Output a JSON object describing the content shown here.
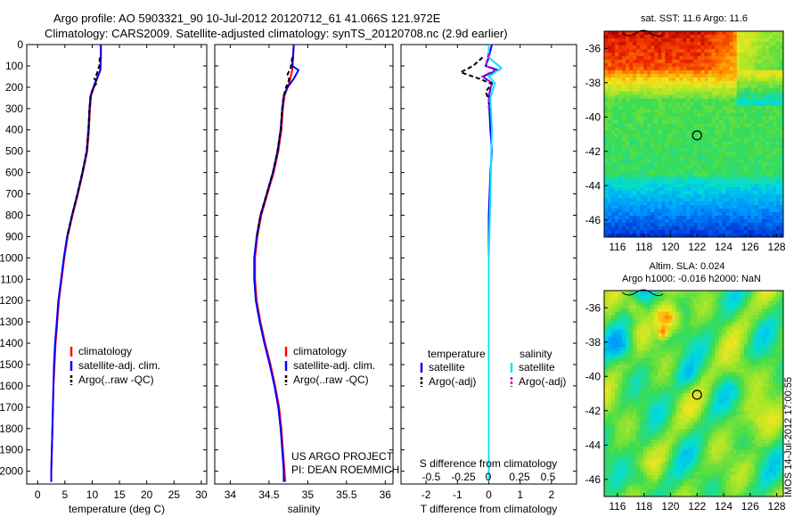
{
  "header": {
    "line1": "Argo profile: AO 5903321_90 10-Jul-2012 20120712_61 41.066S 121.972E",
    "line2": "Climatology: CARS2009. Satellite-adjusted climatology: synTS_20120708.nc (2.9d earlier)"
  },
  "colors": {
    "climatology": "#ff0000",
    "satellite": "#0000ff",
    "argo": "#000000",
    "sat_salinity": "#00e5ff",
    "argo_salinity": "#cc00cc"
  },
  "chart_data": [
    {
      "type": "line",
      "xlabel": "temperature (deg C)",
      "ylabel": "",
      "xlim": [
        -2,
        31
      ],
      "ylim": [
        2060,
        0
      ],
      "xticks": [
        "0",
        "5",
        "10",
        "15",
        "20",
        "25",
        "30"
      ],
      "yticks": [
        "0",
        "100",
        "200",
        "300",
        "400",
        "500",
        "600",
        "700",
        "800",
        "900",
        "1000",
        "1100",
        "1200",
        "1300",
        "1400",
        "1500",
        "1600",
        "1700",
        "1800",
        "1900",
        "2000"
      ],
      "legend": [
        "climatology",
        "satellite-adj. clim.",
        "Argo(..raw -QC)"
      ],
      "series": [
        {
          "name": "climatology",
          "color": "#ff0000",
          "points": [
            [
              11.6,
              0
            ],
            [
              11.6,
              60
            ],
            [
              11.5,
              120
            ],
            [
              10.6,
              180
            ],
            [
              9.8,
              240
            ],
            [
              9.6,
              300
            ],
            [
              9.4,
              400
            ],
            [
              9.1,
              500
            ],
            [
              8.3,
              600
            ],
            [
              7.4,
              700
            ],
            [
              6.4,
              800
            ],
            [
              5.5,
              900
            ],
            [
              4.9,
              1000
            ],
            [
              4.4,
              1100
            ],
            [
              3.9,
              1200
            ],
            [
              3.6,
              1300
            ],
            [
              3.3,
              1400
            ],
            [
              3.1,
              1500
            ],
            [
              2.9,
              1600
            ],
            [
              2.8,
              1700
            ],
            [
              2.7,
              1800
            ],
            [
              2.6,
              1900
            ],
            [
              2.5,
              2000
            ],
            [
              2.5,
              2050
            ]
          ]
        },
        {
          "name": "satellite-adj. clim.",
          "color": "#0000ff",
          "points": [
            [
              11.6,
              0
            ],
            [
              11.6,
              60
            ],
            [
              11.5,
              120
            ],
            [
              10.5,
              180
            ],
            [
              9.7,
              240
            ],
            [
              9.5,
              300
            ],
            [
              9.3,
              400
            ],
            [
              9.0,
              500
            ],
            [
              8.2,
              600
            ],
            [
              7.3,
              700
            ],
            [
              6.3,
              800
            ],
            [
              5.4,
              900
            ],
            [
              4.8,
              1000
            ],
            [
              4.3,
              1100
            ],
            [
              3.8,
              1200
            ],
            [
              3.5,
              1300
            ],
            [
              3.2,
              1400
            ],
            [
              3.0,
              1500
            ],
            [
              2.9,
              1600
            ],
            [
              2.8,
              1700
            ],
            [
              2.7,
              1800
            ],
            [
              2.6,
              1900
            ],
            [
              2.5,
              2000
            ],
            [
              2.5,
              2050
            ]
          ]
        },
        {
          "name": "Argo(..raw -QC)",
          "color": "#000000",
          "dashed": true,
          "points": [
            [
              11.4,
              60
            ],
            [
              11.3,
              100
            ],
            [
              10.8,
              140
            ],
            [
              10.4,
              160
            ],
            [
              11.0,
              175
            ],
            [
              10.2,
              200
            ],
            [
              9.7,
              240
            ],
            [
              9.5,
              300
            ],
            [
              9.3,
              400
            ],
            [
              9.0,
              500
            ],
            [
              8.2,
              600
            ],
            [
              7.3,
              700
            ],
            [
              6.3,
              800
            ],
            [
              5.4,
              900
            ]
          ]
        }
      ]
    },
    {
      "type": "line",
      "xlabel": "salinity",
      "xlim": [
        33.8,
        36.1
      ],
      "ylim": [
        2060,
        0
      ],
      "xticks": [
        "34",
        "34.5",
        "35",
        "35.5",
        "36"
      ],
      "legend": [
        "climatology",
        "satellite-adj. clim.",
        "Argo(..raw -QC)"
      ],
      "annotation": [
        "US ARGO PROJECT",
        "PI: DEAN ROEMMICH"
      ],
      "series": [
        {
          "name": "climatology",
          "color": "#ff0000",
          "points": [
            [
              34.82,
              0
            ],
            [
              34.81,
              60
            ],
            [
              34.8,
              120
            ],
            [
              34.76,
              180
            ],
            [
              34.7,
              240
            ],
            [
              34.68,
              300
            ],
            [
              34.66,
              400
            ],
            [
              34.62,
              500
            ],
            [
              34.56,
              600
            ],
            [
              34.48,
              700
            ],
            [
              34.4,
              800
            ],
            [
              34.35,
              900
            ],
            [
              34.32,
              1000
            ],
            [
              34.32,
              1100
            ],
            [
              34.34,
              1200
            ],
            [
              34.39,
              1300
            ],
            [
              34.45,
              1400
            ],
            [
              34.52,
              1500
            ],
            [
              34.58,
              1600
            ],
            [
              34.63,
              1700
            ],
            [
              34.66,
              1800
            ],
            [
              34.68,
              1900
            ],
            [
              34.7,
              2000
            ],
            [
              34.71,
              2050
            ]
          ]
        },
        {
          "name": "satellite-adj. clim.",
          "color": "#0000ff",
          "points": [
            [
              34.82,
              0
            ],
            [
              34.81,
              60
            ],
            [
              34.8,
              100
            ],
            [
              34.88,
              120
            ],
            [
              34.82,
              160
            ],
            [
              34.74,
              200
            ],
            [
              34.69,
              240
            ],
            [
              34.67,
              300
            ],
            [
              34.65,
              400
            ],
            [
              34.61,
              500
            ],
            [
              34.55,
              600
            ],
            [
              34.47,
              700
            ],
            [
              34.39,
              800
            ],
            [
              34.34,
              900
            ],
            [
              34.31,
              1000
            ],
            [
              34.31,
              1100
            ],
            [
              34.33,
              1200
            ],
            [
              34.38,
              1300
            ],
            [
              34.44,
              1400
            ],
            [
              34.51,
              1500
            ],
            [
              34.57,
              1600
            ],
            [
              34.62,
              1700
            ],
            [
              34.65,
              1800
            ],
            [
              34.67,
              1900
            ],
            [
              34.69,
              2000
            ],
            [
              34.69,
              2050
            ]
          ]
        },
        {
          "name": "Argo(..raw -QC)",
          "color": "#000000",
          "dashed": true,
          "points": [
            [
              34.8,
              60
            ],
            [
              34.78,
              110
            ],
            [
              34.74,
              140
            ],
            [
              34.76,
              165
            ],
            [
              34.72,
              200
            ],
            [
              34.69,
              240
            ],
            [
              34.67,
              300
            ],
            [
              34.65,
              400
            ],
            [
              34.61,
              500
            ],
            [
              34.55,
              600
            ],
            [
              34.47,
              700
            ],
            [
              34.39,
              800
            ],
            [
              34.34,
              900
            ]
          ]
        }
      ]
    },
    {
      "type": "line",
      "xlabel": "T difference from climatology",
      "top_label": "S difference from climatology",
      "xlim": [
        -2.8,
        2.8
      ],
      "ylim": [
        2060,
        0
      ],
      "xticks": [
        "-2",
        "-1",
        "0",
        "1",
        "2"
      ],
      "top_ticks": [
        "-0.5",
        "-0.25",
        "0",
        "0.25",
        "0.5"
      ],
      "legend_left": {
        "title": "temperature",
        "items": [
          "satellite",
          "Argo(-adj)"
        ]
      },
      "legend_right": {
        "title": "salinity",
        "items": [
          "satellite",
          "Argo(-adj)"
        ]
      },
      "series": [
        {
          "name": "satellite",
          "group": "temperature",
          "color": "#0000ff",
          "points": [
            [
              0.1,
              0
            ],
            [
              0.0,
              60
            ],
            [
              -0.1,
              100
            ],
            [
              0.3,
              120
            ],
            [
              -0.2,
              150
            ],
            [
              0.1,
              180
            ],
            [
              0.0,
              240
            ],
            [
              0.05,
              400
            ],
            [
              0.1,
              500
            ],
            [
              0.05,
              600
            ],
            [
              0.0,
              800
            ],
            [
              0.0,
              1000
            ],
            [
              0.0,
              1200
            ],
            [
              0.0,
              1400
            ],
            [
              0.0,
              2050
            ]
          ]
        },
        {
          "name": "Argo(-adj)",
          "group": "temperature",
          "color": "#000000",
          "dashed": true,
          "points": [
            [
              -0.2,
              60
            ],
            [
              -0.5,
              100
            ],
            [
              -0.9,
              130
            ],
            [
              -0.3,
              160
            ],
            [
              0.1,
              185
            ],
            [
              -0.1,
              220
            ],
            [
              0.0,
              260
            ],
            [
              0.0,
              300
            ]
          ]
        },
        {
          "name": "satellite",
          "group": "salinity",
          "color": "#00e5ff",
          "points": [
            [
              0.0,
              0
            ],
            [
              0.0,
              60
            ],
            [
              0.4,
              110
            ],
            [
              0.0,
              150
            ],
            [
              0.2,
              180
            ],
            [
              0.05,
              250
            ],
            [
              0.1,
              400
            ],
            [
              0.05,
              700
            ],
            [
              0.0,
              1000
            ],
            [
              0.0,
              1400
            ],
            [
              0.0,
              2050
            ]
          ]
        },
        {
          "name": "Argo(-adj)",
          "group": "salinity",
          "color": "#cc00cc",
          "dashed": true,
          "points": [
            [
              0.0,
              40
            ],
            [
              -0.1,
              100
            ],
            [
              0.2,
              120
            ],
            [
              -0.2,
              150
            ],
            [
              0.1,
              180
            ],
            [
              0.0,
              250
            ],
            [
              0.0,
              300
            ]
          ]
        }
      ]
    },
    {
      "type": "heatmap",
      "title": "sat. SST: 11.6  Argo: 11.6",
      "xlim": [
        115,
        128.5
      ],
      "ylim": [
        -47,
        -35
      ],
      "xticks": [
        "116",
        "118",
        "120",
        "122",
        "124",
        "126",
        "128"
      ],
      "yticks": [
        "-36",
        "-38",
        "-40",
        "-42",
        "-44",
        "-46"
      ],
      "marker": {
        "lon": 122,
        "lat": -41.07
      }
    },
    {
      "type": "heatmap",
      "title": "Altim. SLA: 0.024",
      "subtitle": "Argo h1000: -0.016  h2000: NaN",
      "xlim": [
        115,
        128.5
      ],
      "ylim": [
        -47,
        -35
      ],
      "xticks": [
        "116",
        "118",
        "120",
        "122",
        "124",
        "126",
        "128"
      ],
      "yticks": [
        "-36",
        "-38",
        "-40",
        "-42",
        "-44",
        "-46"
      ],
      "marker": {
        "lon": 122,
        "lat": -41.07
      }
    }
  ],
  "footer": {
    "timestamp": "IMOS 14-Jul-2012 17:00:55"
  }
}
